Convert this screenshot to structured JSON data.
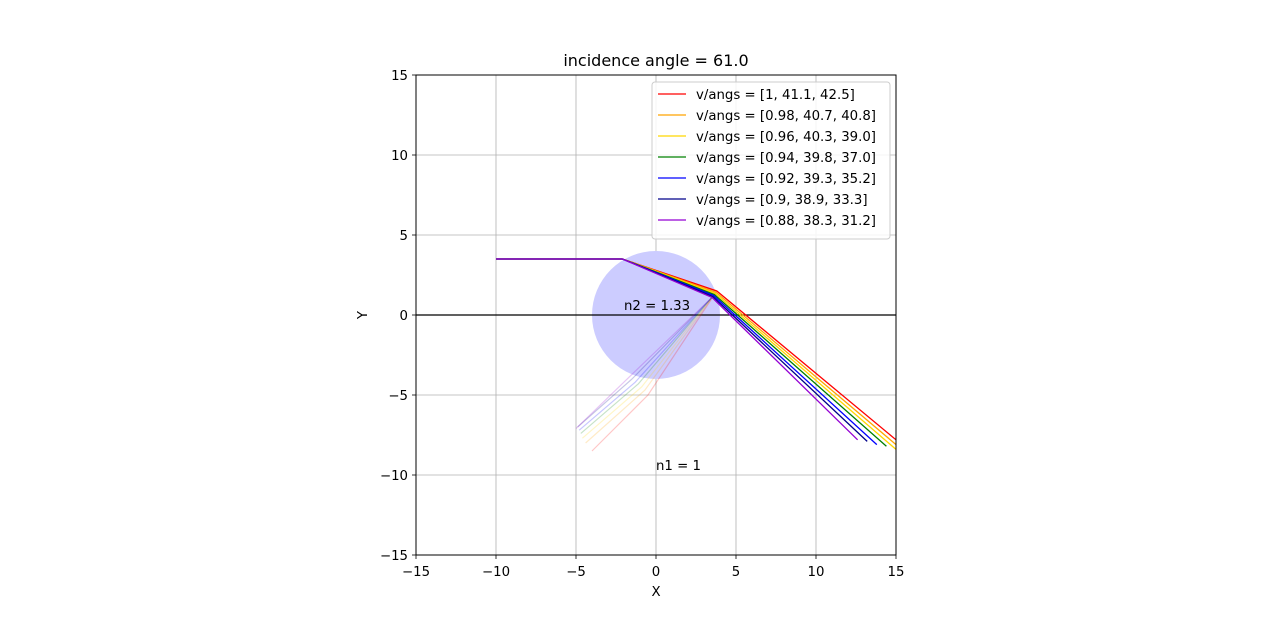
{
  "chart_data": {
    "type": "line",
    "title": "incidence angle = 61.0",
    "xlabel": "X",
    "ylabel": "Y",
    "xlim": [
      -15,
      15
    ],
    "ylim": [
      -15,
      15
    ],
    "xticks": [
      -15,
      -10,
      -5,
      0,
      5,
      10,
      15
    ],
    "yticks": [
      -15,
      -10,
      -5,
      0,
      5,
      10,
      15
    ],
    "xtick_labels": [
      "−15",
      "−10",
      "−5",
      "0",
      "5",
      "10",
      "15"
    ],
    "ytick_labels": [
      "−15",
      "−10",
      "−5",
      "0",
      "5",
      "10",
      "15"
    ],
    "grid": true,
    "legend_position": "upper right",
    "aspect": "equal",
    "circle": {
      "center": [
        0,
        0
      ],
      "radius": 4,
      "color": "#ccccff"
    },
    "horizontal_line_y": 0,
    "annotations": [
      {
        "text": "n2 = 1.33",
        "x": -2,
        "y": 0.3
      },
      {
        "text": "n1 = 1",
        "x": 0,
        "y": -9.7
      }
    ],
    "series": [
      {
        "name": "v/angs = [1, 41.1, 42.5]",
        "color": "#ff0000",
        "path": [
          [
            -10,
            3.5
          ],
          [
            -2.1,
            3.5
          ],
          [
            3.8,
            1.5
          ],
          [
            15,
            -7.8
          ]
        ],
        "faint_path": [
          [
            3.8,
            1.5
          ],
          [
            -0.5,
            -5.0
          ],
          [
            -4.0,
            -8.5
          ]
        ]
      },
      {
        "name": "v/angs = [0.98, 40.7, 40.8]",
        "color": "#ffa500",
        "path": [
          [
            -10,
            3.5
          ],
          [
            -2.1,
            3.5
          ],
          [
            3.75,
            1.42
          ],
          [
            15,
            -8.1
          ]
        ],
        "faint_path": [
          [
            3.75,
            1.42
          ],
          [
            -0.7,
            -4.7
          ],
          [
            -4.4,
            -8.0
          ]
        ]
      },
      {
        "name": "v/angs = [0.96, 40.3, 39.0]",
        "color": "#ffd700",
        "path": [
          [
            -10,
            3.5
          ],
          [
            -2.1,
            3.5
          ],
          [
            3.7,
            1.35
          ],
          [
            15,
            -8.4
          ]
        ],
        "faint_path": [
          [
            3.7,
            1.35
          ],
          [
            -0.9,
            -4.5
          ],
          [
            -4.6,
            -7.7
          ]
        ]
      },
      {
        "name": "v/angs = [0.94, 39.8, 37.0]",
        "color": "#008000",
        "path": [
          [
            -10,
            3.5
          ],
          [
            -2.1,
            3.5
          ],
          [
            3.65,
            1.28
          ],
          [
            14.4,
            -8.2
          ]
        ],
        "faint_path": [
          [
            3.65,
            1.28
          ],
          [
            -1.1,
            -4.3
          ],
          [
            -4.7,
            -7.4
          ]
        ]
      },
      {
        "name": "v/angs = [0.92, 39.3, 35.2]",
        "color": "#0000ff",
        "path": [
          [
            -10,
            3.5
          ],
          [
            -2.1,
            3.5
          ],
          [
            3.6,
            1.22
          ],
          [
            13.8,
            -8.1
          ]
        ],
        "faint_path": [
          [
            3.6,
            1.22
          ],
          [
            -1.3,
            -4.2
          ],
          [
            -4.8,
            -7.2
          ]
        ]
      },
      {
        "name": "v/angs = [0.9, 38.9, 33.3]",
        "color": "#00008b",
        "path": [
          [
            -10,
            3.5
          ],
          [
            -2.1,
            3.5
          ],
          [
            3.55,
            1.15
          ],
          [
            13.2,
            -7.9
          ]
        ],
        "faint_path": [
          [
            3.55,
            1.15
          ],
          [
            -1.5,
            -4.0
          ],
          [
            -4.9,
            -7.0
          ]
        ]
      },
      {
        "name": "v/angs = [0.88, 38.3, 31.2]",
        "color": "#9400d3",
        "path": [
          [
            -10,
            3.5
          ],
          [
            -2.1,
            3.5
          ],
          [
            3.5,
            1.1
          ],
          [
            12.6,
            -7.8
          ]
        ],
        "faint_path": [
          [
            3.5,
            1.1
          ],
          [
            -1.7,
            -3.9
          ],
          [
            -5.0,
            -7.1
          ]
        ]
      }
    ]
  }
}
